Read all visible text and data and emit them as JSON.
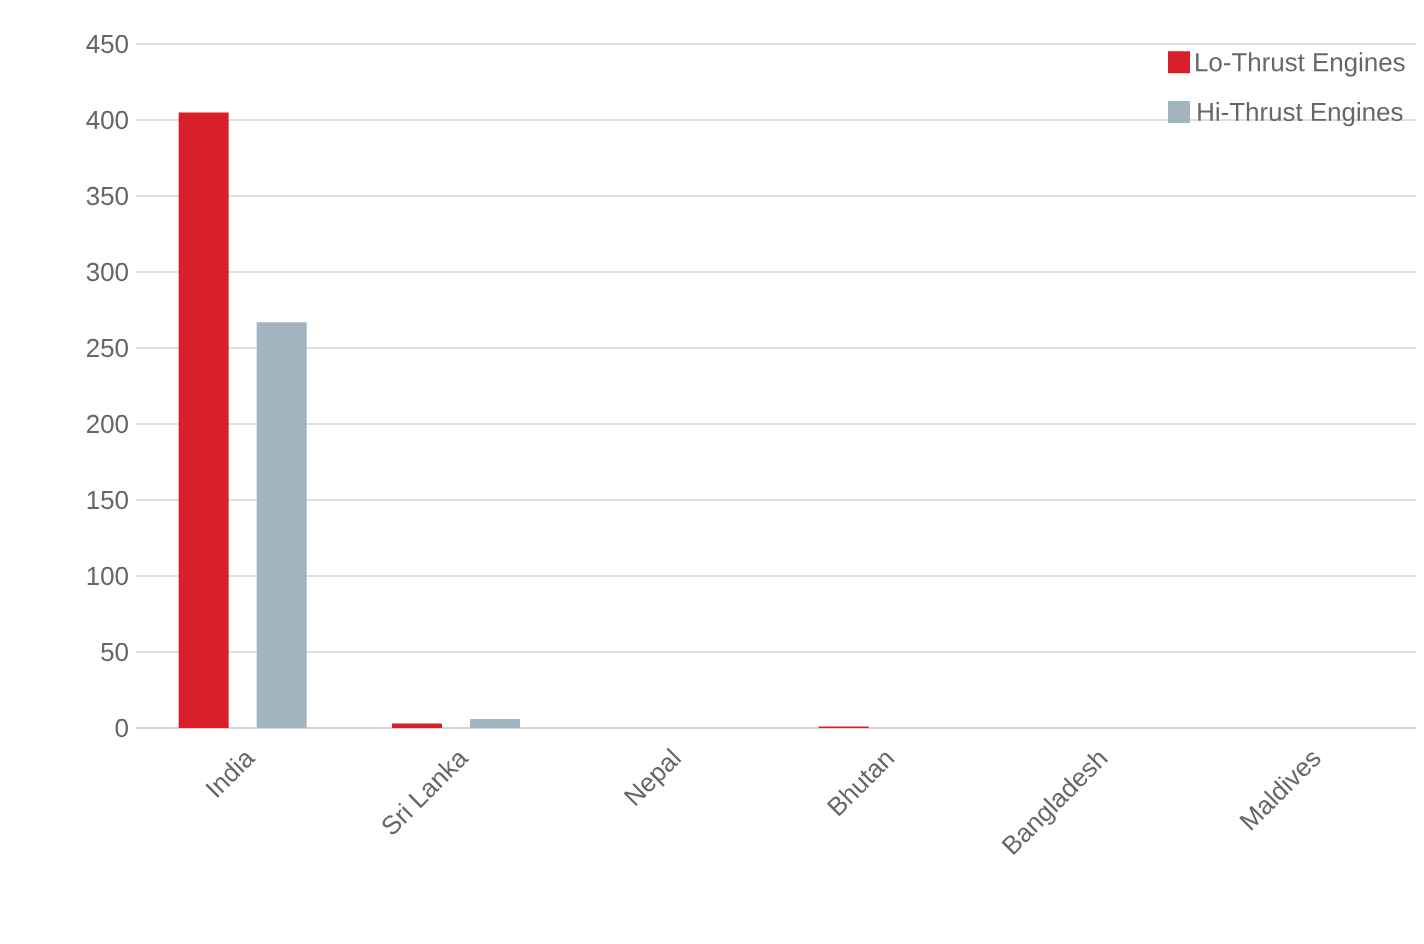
{
  "chart_data": {
    "type": "bar",
    "categories": [
      "India",
      "Sri Lanka",
      "Nepal",
      "Bhutan",
      "Bangladesh",
      "Maldives"
    ],
    "series": [
      {
        "name": "Lo-Thrust Engines",
        "color": "#d81f2a",
        "values": [
          405,
          3,
          0,
          1,
          0,
          0
        ]
      },
      {
        "name": "Hi-Thrust Engines",
        "color": "#a2b4bf",
        "values": [
          267,
          6,
          0,
          0,
          0,
          0
        ]
      }
    ],
    "ylim": [
      0,
      450
    ],
    "yticks": [
      0,
      50,
      100,
      150,
      200,
      250,
      300,
      350,
      400,
      450
    ],
    "grid": "y",
    "legend": "top right"
  }
}
